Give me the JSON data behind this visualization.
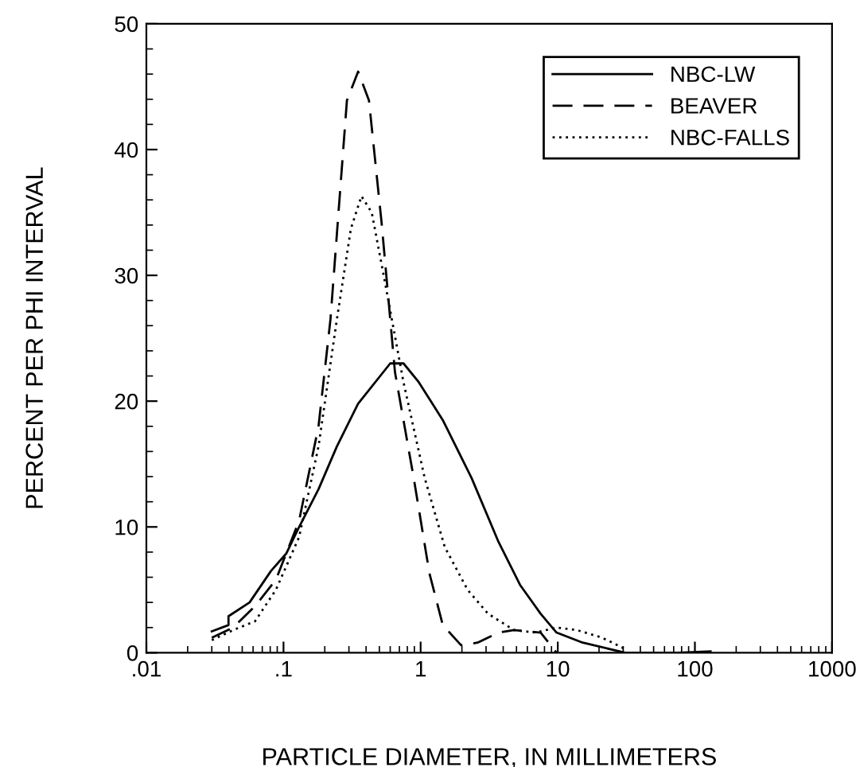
{
  "chart_data": {
    "type": "line",
    "xlabel": "PARTICLE DIAMETER, IN MILLIMETERS",
    "ylabel": "PERCENT PER PHI INTERVAL",
    "log": "x",
    "xlim": [
      0.01,
      1000
    ],
    "xticks": [
      {
        "value": 0.01,
        "label": ".01"
      },
      {
        "value": 0.1,
        "label": ".1"
      },
      1,
      10,
      100,
      1000
    ],
    "ylim": [
      0,
      50
    ],
    "yticks": [
      0,
      10,
      20,
      30,
      40,
      50
    ],
    "grid": false,
    "legend": "top right",
    "series": [
      {
        "name": "NBC-LW",
        "color": "#000000",
        "line_style": "solid",
        "x": [
          0.03,
          0.0397,
          0.0397,
          0.0566,
          0.081,
          0.105,
          0.13,
          0.18,
          0.245,
          0.35,
          0.6,
          0.75,
          0.97,
          1.45,
          2.35,
          3.7,
          5.3,
          7.5,
          9.8,
          15.2,
          31,
          75,
          130
        ],
        "values": [
          1.7,
          2.2,
          2.9,
          4.0,
          6.5,
          7.9,
          10,
          13,
          16.4,
          19.8,
          23.0,
          23.0,
          21.5,
          18.5,
          13.9,
          8.8,
          5.4,
          3.1,
          1.6,
          0.8,
          0,
          0,
          0.1
        ]
      },
      {
        "name": "BEAVER",
        "color": "#000000",
        "line_style": "dashed",
        "x": [
          0.03,
          0.043,
          0.062,
          0.088,
          0.13,
          0.18,
          0.22,
          0.29,
          0.35,
          0.42,
          0.52,
          0.65,
          0.89,
          1.16,
          1.45,
          1.97,
          2.6,
          3.7,
          4.8,
          7.5,
          9.8
        ],
        "values": [
          1.2,
          2.0,
          3.7,
          5.8,
          10.5,
          18,
          26.5,
          43.9,
          46.2,
          43.9,
          34.1,
          22.3,
          13.9,
          6.3,
          2.2,
          0.6,
          0.8,
          1.6,
          1.8,
          1.6,
          0
        ]
      },
      {
        "name": "NBC-FALLS",
        "color": "#000000",
        "line_style": "dotted",
        "x": [
          0.03,
          0.043,
          0.062,
          0.088,
          0.13,
          0.18,
          0.245,
          0.31,
          0.37,
          0.44,
          0.54,
          0.75,
          1.07,
          1.5,
          2.2,
          3.1,
          4.8,
          6.9,
          9.8,
          13.8,
          21,
          31
        ],
        "values": [
          1.0,
          1.8,
          2.5,
          5.0,
          9.2,
          16.4,
          26.5,
          33.7,
          36.3,
          35.0,
          29.9,
          21.5,
          13.9,
          8.4,
          5.0,
          3.1,
          1.8,
          1.6,
          2.0,
          1.8,
          1.2,
          0.3
        ]
      }
    ]
  }
}
